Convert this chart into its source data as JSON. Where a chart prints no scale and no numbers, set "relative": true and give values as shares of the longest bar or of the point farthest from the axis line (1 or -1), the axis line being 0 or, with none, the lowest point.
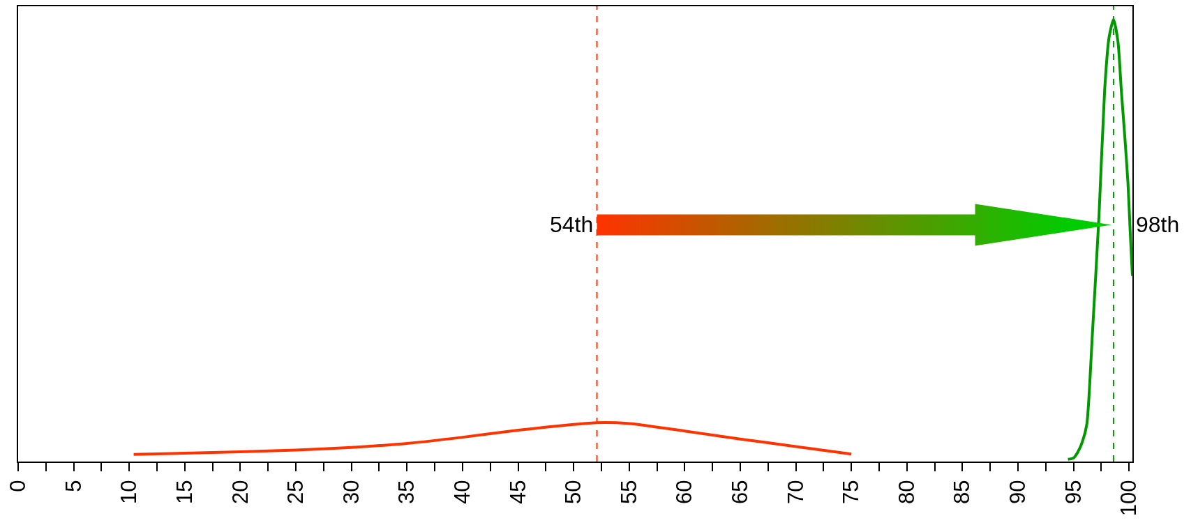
{
  "chart_data": {
    "type": "line",
    "relative": true,
    "xlim": [
      0,
      100.3
    ],
    "xticks": [
      0,
      {
        "value": 2.5,
        "label": null
      },
      5,
      {
        "value": 7.5,
        "label": null
      },
      10,
      {
        "value": 12.5,
        "label": null
      },
      15,
      {
        "value": 17.5,
        "label": null
      },
      20,
      {
        "value": 22.5,
        "label": null
      },
      25,
      {
        "value": 27.5,
        "label": null
      },
      30,
      {
        "value": 32.5,
        "label": null
      },
      35,
      {
        "value": 37.5,
        "label": null
      },
      40,
      {
        "value": 42.5,
        "label": null
      },
      45,
      {
        "value": 47.5,
        "label": null
      },
      50,
      {
        "value": 52.5,
        "label": null
      },
      55,
      {
        "value": 57.5,
        "label": null
      },
      60,
      {
        "value": 62.5,
        "label": null
      },
      65,
      {
        "value": 67.5,
        "label": null
      },
      70,
      {
        "value": 72.5,
        "label": null
      },
      75,
      {
        "value": 77.5,
        "label": null
      },
      80,
      {
        "value": 82.5,
        "label": null
      },
      85,
      {
        "value": 87.5,
        "label": null
      },
      90,
      {
        "value": 92.5,
        "label": null
      },
      95,
      {
        "value": 97.5,
        "label": null
      },
      100
    ],
    "series": [
      {
        "color": "#ff3300",
        "x": [
          10.4,
          15,
          20,
          25,
          30,
          35,
          40,
          45,
          50,
          52.1,
          55,
          60,
          65,
          70,
          75
        ],
        "values": [
          0.016,
          0.019,
          0.022,
          0.026,
          0.032,
          0.041,
          0.055,
          0.071,
          0.084,
          0.088,
          0.086,
          0.069,
          0.051,
          0.034,
          0.017
        ]
      },
      {
        "color": "#009900",
        "x": [
          94.5,
          95,
          95.4,
          95.8,
          96.2,
          96.7,
          97.3,
          97.8,
          98.2,
          98.6,
          99,
          99.3,
          99.6,
          99.9,
          100.1,
          100.3
        ],
        "values": [
          0.005,
          0.008,
          0.022,
          0.045,
          0.085,
          0.29,
          0.56,
          0.84,
          0.96,
          1.0,
          0.95,
          0.84,
          0.74,
          0.63,
          0.52,
          0.42
        ]
      }
    ],
    "ref_lines": [
      {
        "axis": "x",
        "value": 52.1,
        "label": "54th",
        "color": "#ff3300",
        "line_style": "dashed"
      },
      {
        "axis": "x",
        "value": 98.6,
        "label": "98th",
        "color": "#009900",
        "line_style": "dashed"
      }
    ],
    "line_style": "solid"
  }
}
